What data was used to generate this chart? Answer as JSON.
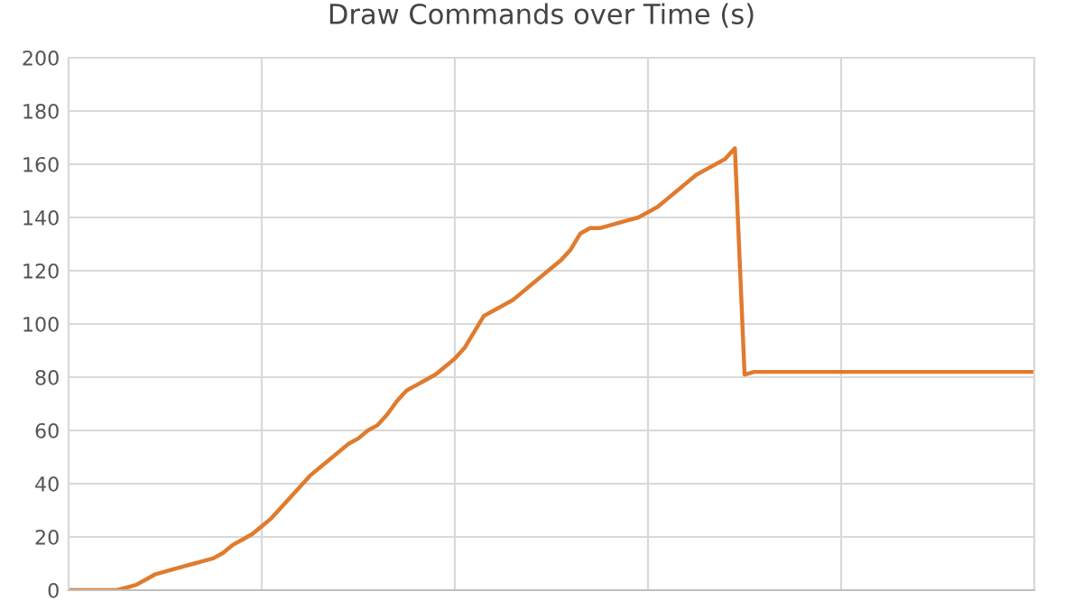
{
  "chart_data": {
    "type": "line",
    "title": "Draw Commands over Time (s)",
    "categories": [
      null,
      null,
      null,
      null,
      null,
      null,
      null,
      null,
      null,
      null,
      null,
      null,
      null,
      null,
      null,
      null,
      null,
      null,
      null,
      null,
      null,
      null,
      null,
      null,
      null,
      null,
      null,
      null,
      null,
      null,
      null,
      null,
      null,
      null,
      null,
      null,
      null,
      null,
      null,
      null,
      null,
      null,
      null,
      null,
      null,
      null,
      null,
      null,
      null,
      null,
      null,
      null,
      null,
      null,
      null,
      null,
      null,
      null,
      null,
      null,
      null,
      null,
      null,
      null,
      null,
      null,
      null,
      null,
      null,
      null,
      null,
      null,
      null,
      null,
      null,
      null,
      null,
      null,
      null,
      null,
      null,
      null,
      null,
      null,
      null,
      null,
      null,
      null,
      null,
      null,
      null,
      null,
      null,
      null,
      null,
      null,
      null,
      null,
      null,
      null,
      null
    ],
    "series": [
      {
        "color": "#e07b2e",
        "values": [
          0,
          0,
          0,
          0,
          0,
          0,
          1,
          2,
          4,
          6,
          7,
          8,
          9,
          10,
          11,
          12,
          14,
          17,
          19,
          21,
          24,
          27,
          31,
          35,
          39,
          43,
          46,
          49,
          52,
          55,
          57,
          60,
          62,
          66,
          71,
          75,
          77,
          79,
          81,
          84,
          87,
          91,
          97,
          103,
          105,
          107,
          109,
          112,
          115,
          118,
          121,
          124,
          128,
          134,
          136,
          136,
          137,
          138,
          139,
          140,
          142,
          144,
          147,
          150,
          153,
          156,
          158,
          160,
          162,
          166,
          81,
          82,
          82,
          82,
          82,
          82,
          82,
          82,
          82,
          82,
          82,
          82,
          82,
          82,
          82,
          82,
          82,
          82,
          82,
          82,
          82,
          82,
          82,
          82,
          82,
          82,
          82,
          82,
          82,
          82,
          82
        ]
      }
    ],
    "ylim": [
      0,
      200
    ],
    "yticks": [
      0,
      20,
      40,
      60,
      80,
      100,
      120,
      140,
      160,
      180,
      200
    ],
    "grid": true,
    "marker": "none",
    "line_style": "solid"
  }
}
